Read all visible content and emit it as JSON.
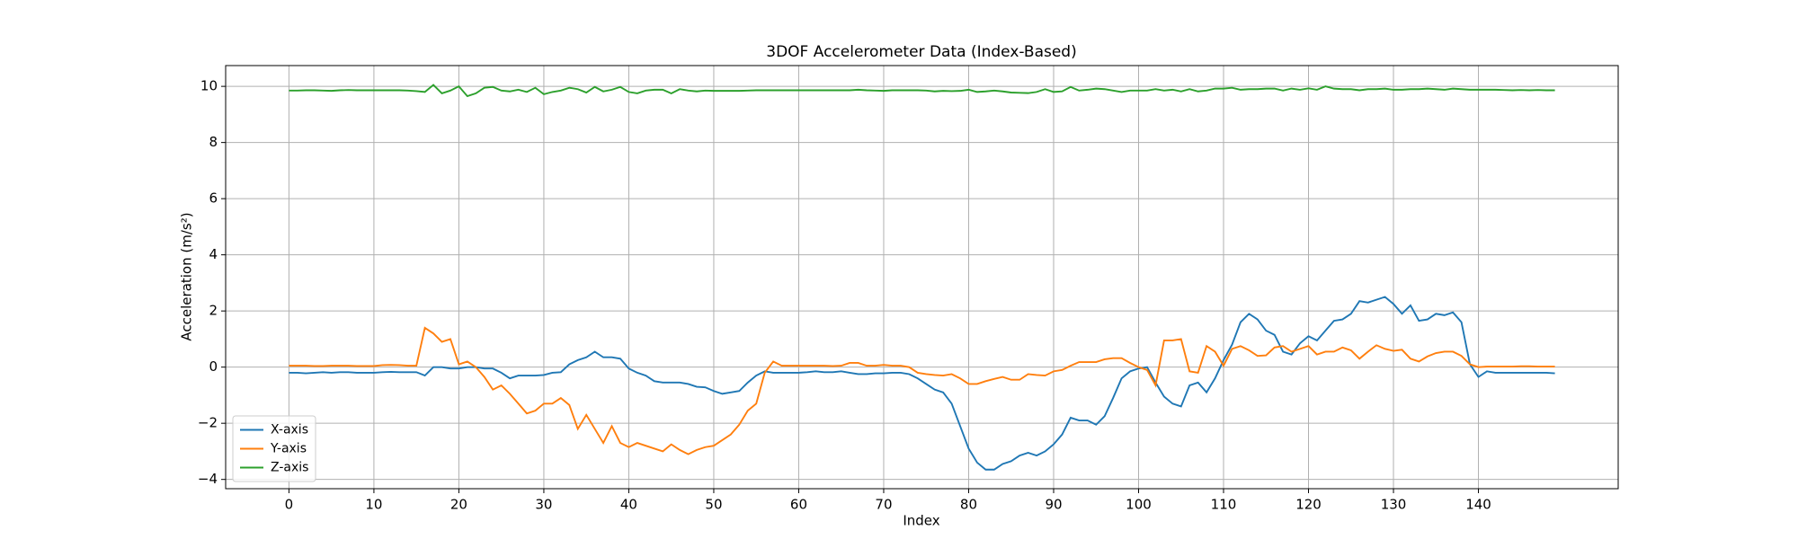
{
  "chart_data": {
    "type": "line",
    "title": "3DOF Accelerometer Data (Index-Based)",
    "x_label": "Index",
    "y_label": "Acceleration (m/s²)",
    "x": [
      0,
      1,
      2,
      3,
      4,
      5,
      6,
      7,
      8,
      9,
      10,
      11,
      12,
      13,
      14,
      15,
      16,
      17,
      18,
      19,
      20,
      21,
      22,
      23,
      24,
      25,
      26,
      27,
      28,
      29,
      30,
      31,
      32,
      33,
      34,
      35,
      36,
      37,
      38,
      39,
      40,
      41,
      42,
      43,
      44,
      45,
      46,
      47,
      48,
      49,
      50,
      51,
      52,
      53,
      54,
      55,
      56,
      57,
      58,
      59,
      60,
      61,
      62,
      63,
      64,
      65,
      66,
      67,
      68,
      69,
      70,
      71,
      72,
      73,
      74,
      75,
      76,
      77,
      78,
      79,
      80,
      81,
      82,
      83,
      84,
      85,
      86,
      87,
      88,
      89,
      90,
      91,
      92,
      93,
      94,
      95,
      96,
      97,
      98,
      99,
      100,
      101,
      102,
      103,
      104,
      105,
      106,
      107,
      108,
      109,
      110,
      111,
      112,
      113,
      114,
      115,
      116,
      117,
      118,
      119,
      120,
      121,
      122,
      123,
      124,
      125,
      126,
      127,
      128,
      129,
      130,
      131,
      132,
      133,
      134,
      135,
      136,
      137,
      138,
      139,
      140,
      141,
      142,
      143,
      144,
      145,
      146,
      147,
      148,
      149
    ],
    "series": [
      {
        "name": "X-axis",
        "color": "#1f77b4",
        "values": [
          -0.2,
          -0.2,
          -0.22,
          -0.2,
          -0.18,
          -0.2,
          -0.18,
          -0.18,
          -0.2,
          -0.2,
          -0.2,
          -0.18,
          -0.17,
          -0.18,
          -0.18,
          -0.18,
          -0.3,
          0,
          0,
          -0.05,
          -0.05,
          0,
          0,
          -0.05,
          -0.05,
          -0.2,
          -0.4,
          -0.3,
          -0.3,
          -0.3,
          -0.28,
          -0.2,
          -0.18,
          0.1,
          0.25,
          0.35,
          0.55,
          0.35,
          0.35,
          0.3,
          -0.05,
          -0.2,
          -0.3,
          -0.5,
          -0.55,
          -0.55,
          -0.55,
          -0.6,
          -0.7,
          -0.72,
          -0.85,
          -0.95,
          -0.9,
          -0.85,
          -0.55,
          -0.3,
          -0.15,
          -0.2,
          -0.2,
          -0.2,
          -0.2,
          -0.18,
          -0.15,
          -0.18,
          -0.18,
          -0.15,
          -0.2,
          -0.25,
          -0.25,
          -0.22,
          -0.22,
          -0.2,
          -0.2,
          -0.25,
          -0.4,
          -0.6,
          -0.8,
          -0.9,
          -1.3,
          -2.1,
          -2.9,
          -3.4,
          -3.65,
          -3.65,
          -3.45,
          -3.35,
          -3.15,
          -3.05,
          -3.15,
          -3.0,
          -2.75,
          -2.4,
          -1.8,
          -1.9,
          -1.9,
          -2.05,
          -1.75,
          -1.1,
          -0.4,
          -0.15,
          -0.05,
          0,
          -0.55,
          -1.05,
          -1.3,
          -1.4,
          -0.65,
          -0.55,
          -0.9,
          -0.4,
          0.25,
          0.8,
          1.6,
          1.9,
          1.7,
          1.3,
          1.15,
          0.55,
          0.45,
          0.85,
          1.1,
          0.95,
          1.3,
          1.65,
          1.7,
          1.9,
          2.35,
          2.3,
          2.4,
          2.5,
          2.25,
          1.9,
          2.2,
          1.65,
          1.7,
          1.9,
          1.85,
          1.95,
          1.6,
          0.1,
          -0.35,
          -0.15,
          -0.2,
          -0.2,
          -0.2,
          -0.2,
          -0.2,
          -0.2,
          -0.2,
          -0.22
        ]
      },
      {
        "name": "Y-axis",
        "color": "#ff7f0e",
        "values": [
          0.05,
          0.05,
          0.05,
          0.04,
          0.04,
          0.05,
          0.05,
          0.05,
          0.04,
          0.04,
          0.04,
          0.07,
          0.08,
          0.07,
          0.05,
          0.05,
          1.4,
          1.2,
          0.9,
          1.0,
          0.1,
          0.2,
          0,
          -0.35,
          -0.8,
          -0.65,
          -0.95,
          -1.3,
          -1.65,
          -1.55,
          -1.3,
          -1.3,
          -1.1,
          -1.35,
          -2.2,
          -1.7,
          -2.2,
          -2.7,
          -2.1,
          -2.7,
          -2.85,
          -2.7,
          -2.8,
          -2.9,
          -3.0,
          -2.75,
          -2.95,
          -3.1,
          -2.95,
          -2.85,
          -2.8,
          -2.6,
          -2.4,
          -2.05,
          -1.55,
          -1.3,
          -0.2,
          0.2,
          0.05,
          0.05,
          0.05,
          0.05,
          0.05,
          0.05,
          0.04,
          0.05,
          0.15,
          0.15,
          0.05,
          0.05,
          0.08,
          0.05,
          0.05,
          0,
          -0.2,
          -0.25,
          -0.28,
          -0.3,
          -0.25,
          -0.4,
          -0.6,
          -0.6,
          -0.5,
          -0.42,
          -0.35,
          -0.45,
          -0.45,
          -0.25,
          -0.28,
          -0.3,
          -0.15,
          -0.1,
          0.05,
          0.18,
          0.18,
          0.18,
          0.28,
          0.32,
          0.32,
          0.15,
          0,
          -0.1,
          -0.65,
          0.95,
          0.95,
          1.0,
          -0.15,
          -0.2,
          0.75,
          0.55,
          0.05,
          0.65,
          0.75,
          0.6,
          0.4,
          0.42,
          0.7,
          0.75,
          0.55,
          0.65,
          0.75,
          0.45,
          0.55,
          0.55,
          0.7,
          0.6,
          0.3,
          0.55,
          0.78,
          0.65,
          0.58,
          0.62,
          0.3,
          0.2,
          0.38,
          0.5,
          0.55,
          0.55,
          0.4,
          0.1,
          0,
          0.02,
          0.02,
          0.02,
          0.02,
          0.03,
          0.03,
          0.02,
          0.02,
          0.02
        ]
      },
      {
        "name": "Z-axis",
        "color": "#2ca02c",
        "values": [
          9.85,
          9.85,
          9.86,
          9.86,
          9.85,
          9.84,
          9.86,
          9.87,
          9.86,
          9.86,
          9.86,
          9.86,
          9.86,
          9.86,
          9.85,
          9.83,
          9.8,
          10.05,
          9.75,
          9.85,
          10.0,
          9.65,
          9.75,
          9.95,
          9.98,
          9.85,
          9.82,
          9.88,
          9.8,
          9.95,
          9.72,
          9.8,
          9.85,
          9.95,
          9.9,
          9.78,
          9.98,
          9.82,
          9.88,
          9.98,
          9.8,
          9.75,
          9.85,
          9.88,
          9.88,
          9.75,
          9.9,
          9.85,
          9.82,
          9.85,
          9.84,
          9.84,
          9.84,
          9.84,
          9.85,
          9.86,
          9.86,
          9.86,
          9.86,
          9.86,
          9.86,
          9.86,
          9.86,
          9.86,
          9.86,
          9.86,
          9.86,
          9.88,
          9.86,
          9.85,
          9.84,
          9.86,
          9.86,
          9.86,
          9.86,
          9.85,
          9.82,
          9.84,
          9.83,
          9.84,
          9.88,
          9.8,
          9.82,
          9.85,
          9.82,
          9.78,
          9.77,
          9.76,
          9.8,
          9.9,
          9.8,
          9.82,
          9.98,
          9.85,
          9.88,
          9.92,
          9.9,
          9.85,
          9.8,
          9.85,
          9.85,
          9.85,
          9.9,
          9.85,
          9.88,
          9.82,
          9.9,
          9.82,
          9.85,
          9.92,
          9.92,
          9.95,
          9.88,
          9.9,
          9.9,
          9.92,
          9.92,
          9.85,
          9.92,
          9.88,
          9.93,
          9.88,
          10.0,
          9.92,
          9.9,
          9.9,
          9.86,
          9.9,
          9.9,
          9.92,
          9.88,
          9.88,
          9.9,
          9.9,
          9.92,
          9.9,
          9.88,
          9.92,
          9.9,
          9.88,
          9.88,
          9.88,
          9.88,
          9.87,
          9.86,
          9.87,
          9.86,
          9.87,
          9.86,
          9.86
        ]
      }
    ],
    "xlim": [
      -7.45,
      156.45
    ],
    "xticks": [
      0,
      10,
      20,
      30,
      40,
      50,
      60,
      70,
      80,
      90,
      100,
      110,
      120,
      130,
      140
    ],
    "ylim": [
      -4.33,
      10.74
    ],
    "yticks": [
      {
        "value": -4,
        "label": "−4"
      },
      {
        "value": -2,
        "label": "−2"
      },
      0,
      2,
      4,
      6,
      8,
      10
    ],
    "grid": true,
    "legend": "lower left"
  }
}
